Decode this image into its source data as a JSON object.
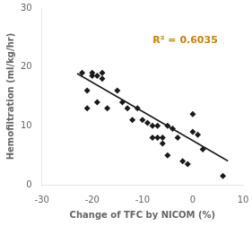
{
  "chart_data": {
    "type": "scatter",
    "xlabel": "Change of TFC by NICOM (%)",
    "ylabel": "Hemofiltration (ml/kg/hr)",
    "xlim": [
      -30,
      10
    ],
    "ylim": [
      0,
      30
    ],
    "xticks": [
      -30,
      -20,
      -10,
      0,
      10
    ],
    "yticks": [
      0,
      10,
      20,
      30
    ],
    "grid": false,
    "series": [
      {
        "type": "scatter",
        "color": "#1a1a1a",
        "marker": "diamond",
        "x": [
          -22,
          -21,
          -21,
          -20,
          -20,
          -19,
          -19,
          -18,
          -18,
          -17,
          -15,
          -14,
          -13,
          -12,
          -11,
          -10,
          -9,
          -8,
          -8,
          -7,
          -7,
          -6,
          -6,
          -5,
          -5,
          -4,
          -3,
          -2,
          -1,
          0,
          0,
          1,
          2,
          6
        ],
        "values": [
          19,
          16,
          13,
          19,
          18.5,
          18.5,
          14,
          19,
          18,
          13,
          16,
          14,
          13,
          11,
          13,
          11,
          10.5,
          10,
          8,
          10,
          8,
          8,
          7,
          5,
          10,
          9.5,
          8,
          4,
          3.5,
          12,
          9,
          8.5,
          6,
          1.5
        ]
      },
      {
        "type": "line",
        "color": "#1a1a1a",
        "line_style": "solid",
        "x": [
          -23,
          7
        ],
        "values": [
          18.885,
          4.035
        ]
      }
    ],
    "annotations": [
      {
        "text": "R² = 0.6035",
        "x": -1.5,
        "y": 24.5,
        "color": "#C8820A"
      }
    ]
  }
}
